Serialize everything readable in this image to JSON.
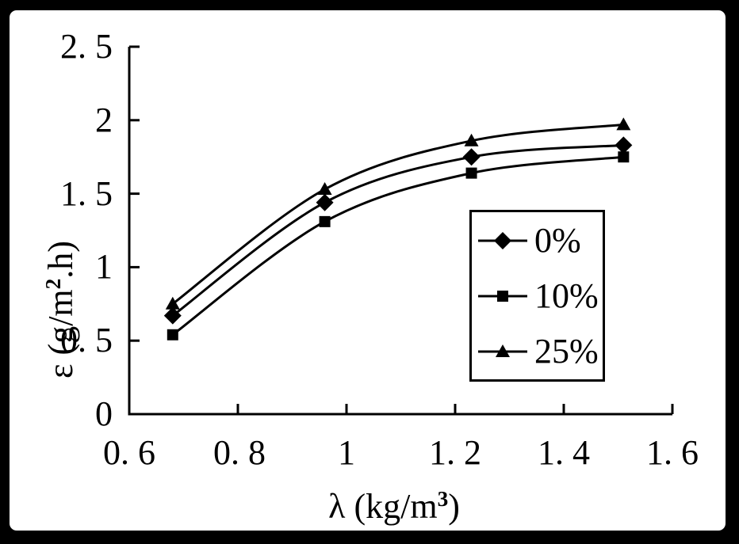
{
  "frame": {
    "background": "#000000",
    "panel_background": "#ffffff"
  },
  "chart_data": {
    "type": "line",
    "title": "",
    "xlabel": "λ (kg/m³)",
    "ylabel": "ε (g/m².h)",
    "x": [
      0.68,
      0.96,
      1.23,
      1.51
    ],
    "series": [
      {
        "name": "0%",
        "marker": "diamond",
        "values": [
          0.67,
          1.44,
          1.75,
          1.83
        ]
      },
      {
        "name": "10%",
        "marker": "square",
        "values": [
          0.54,
          1.31,
          1.64,
          1.75
        ]
      },
      {
        "name": "25%",
        "marker": "triangle",
        "values": [
          0.75,
          1.53,
          1.86,
          1.97
        ]
      }
    ],
    "xlim": [
      0.6,
      1.6
    ],
    "ylim": [
      0,
      2.5
    ],
    "xticks": [
      0.6,
      0.8,
      1.0,
      1.2,
      1.4,
      1.6
    ],
    "yticks": [
      0,
      0.5,
      1.0,
      1.5,
      2.0,
      2.5
    ],
    "grid": false,
    "line_color": "#000000",
    "smooth": true,
    "legend_position": "inside-right"
  },
  "axes": {
    "y_tick_labels": [
      "2. 5",
      "2",
      "1. 5",
      "1",
      "0. 5",
      "0"
    ],
    "x_tick_labels": [
      "0. 6",
      "0. 8",
      "1",
      "1. 2",
      "1. 4",
      "1. 6"
    ],
    "x_label": {
      "base": "λ (kg/m",
      "sup": "3",
      "rest": ")"
    },
    "y_label": {
      "base": "ε (g/m",
      "sup": "2",
      "rest": ".h)"
    }
  },
  "legend": {
    "items": [
      {
        "label": "0%",
        "marker": "diamond"
      },
      {
        "label": "10%",
        "marker": "square"
      },
      {
        "label": "25%",
        "marker": "triangle"
      }
    ]
  }
}
